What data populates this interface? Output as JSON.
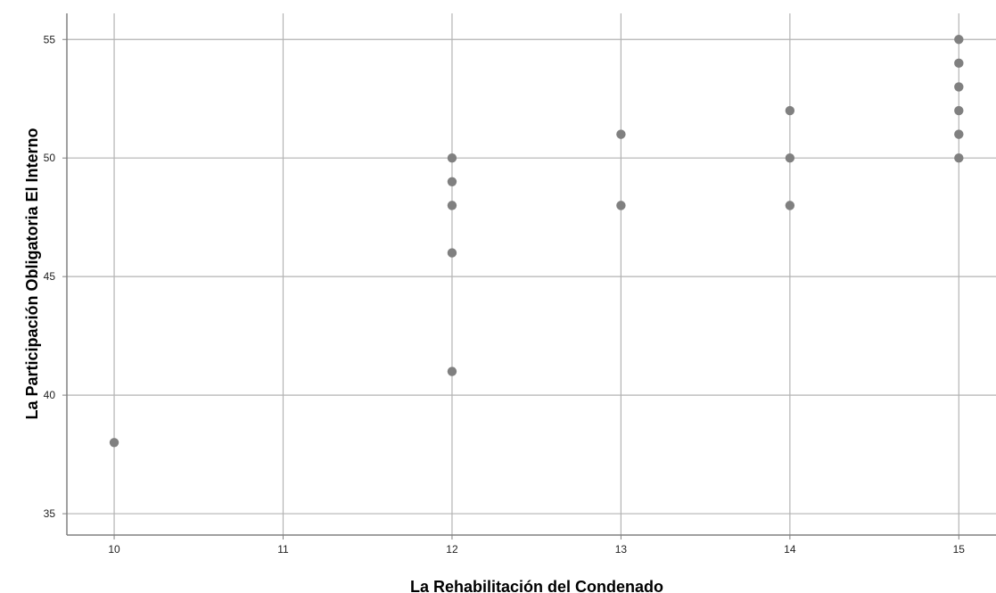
{
  "chart_data": {
    "type": "scatter",
    "title": "",
    "xlabel": "La Rehabilitación del Condenado",
    "ylabel": "La Participación Obligatoria El Interno",
    "xlim": [
      9.72,
      15.22
    ],
    "ylim": [
      34.1,
      56.1
    ],
    "xticks": [
      10,
      11,
      12,
      13,
      14,
      15
    ],
    "yticks": [
      35,
      40,
      45,
      50,
      55
    ],
    "grid": true,
    "marker_color": "#808080",
    "grid_color": "#b3b3b3",
    "axis_color": "#808080",
    "points": [
      {
        "x": 10,
        "y": 38
      },
      {
        "x": 12,
        "y": 50
      },
      {
        "x": 12,
        "y": 49
      },
      {
        "x": 12,
        "y": 48
      },
      {
        "x": 12,
        "y": 46
      },
      {
        "x": 12,
        "y": 41
      },
      {
        "x": 13,
        "y": 51
      },
      {
        "x": 13,
        "y": 48
      },
      {
        "x": 14,
        "y": 52
      },
      {
        "x": 14,
        "y": 50
      },
      {
        "x": 14,
        "y": 48
      },
      {
        "x": 15,
        "y": 55
      },
      {
        "x": 15,
        "y": 54
      },
      {
        "x": 15,
        "y": 53
      },
      {
        "x": 15,
        "y": 52
      },
      {
        "x": 15,
        "y": 51
      },
      {
        "x": 15,
        "y": 50
      }
    ]
  }
}
